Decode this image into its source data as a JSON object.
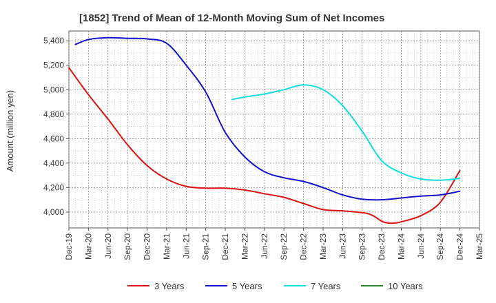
{
  "chart_data": {
    "type": "line",
    "title": "[1852]  Trend of Mean of 12-Month Moving Sum of Net Incomes",
    "xlabel": "",
    "ylabel": "Amount (million yen)",
    "ylim": [
      3870,
      5480
    ],
    "yticks": [
      4000,
      4200,
      4400,
      4600,
      4800,
      5000,
      5200,
      5400
    ],
    "ytick_labels": [
      "4,000",
      "4,200",
      "4,400",
      "4,600",
      "4,800",
      "5,000",
      "5,200",
      "5,400"
    ],
    "x_tick_labels": [
      "Dec-19",
      "Mar-20",
      "Jun-20",
      "Sep-20",
      "Dec-20",
      "Mar-21",
      "Jun-21",
      "Sep-21",
      "Dec-21",
      "Mar-22",
      "Jun-22",
      "Sep-22",
      "Dec-22",
      "Mar-23",
      "Jun-23",
      "Sep-23",
      "Dec-23",
      "Mar-24",
      "Jun-24",
      "Sep-24",
      "Dec-24",
      "Mar-25"
    ],
    "grid": true,
    "legend_position": "bottom",
    "series": [
      {
        "name": "3 Years",
        "color": "#dd1111",
        "points": [
          [
            "Dec-19",
            5180
          ],
          [
            "Mar-20",
            4960
          ],
          [
            "Jun-20",
            4760
          ],
          [
            "Sep-20",
            4550
          ],
          [
            "Dec-20",
            4380
          ],
          [
            "Mar-21",
            4270
          ],
          [
            "Jun-21",
            4210
          ],
          [
            "Sep-21",
            4195
          ],
          [
            "Dec-21",
            4195
          ],
          [
            "Mar-22",
            4180
          ],
          [
            "Jun-22",
            4150
          ],
          [
            "Sep-22",
            4120
          ],
          [
            "Dec-22",
            4070
          ],
          [
            "Mar-23",
            4020
          ],
          [
            "Jun-23",
            4010
          ],
          [
            "Sep-23",
            3995
          ],
          [
            "Oct-23",
            3985
          ],
          [
            "Nov-23",
            3960
          ],
          [
            "Dec-23",
            3925
          ],
          [
            "Jan-24",
            3910
          ],
          [
            "Feb-24",
            3910
          ],
          [
            "Mar-24",
            3920
          ],
          [
            "Jun-24",
            3970
          ],
          [
            "Sep-24",
            4080
          ],
          [
            "Dec-24",
            4340
          ]
        ]
      },
      {
        "name": "5 Years",
        "color": "#1111cc",
        "points": [
          [
            "Jan-20",
            5370
          ],
          [
            "Mar-20",
            5410
          ],
          [
            "Jun-20",
            5425
          ],
          [
            "Sep-20",
            5420
          ],
          [
            "Dec-20",
            5415
          ],
          [
            "Mar-21",
            5380
          ],
          [
            "Jun-21",
            5200
          ],
          [
            "Sep-21",
            4980
          ],
          [
            "Dec-21",
            4650
          ],
          [
            "Mar-22",
            4450
          ],
          [
            "Jun-22",
            4330
          ],
          [
            "Sep-22",
            4280
          ],
          [
            "Dec-22",
            4250
          ],
          [
            "Mar-23",
            4200
          ],
          [
            "Jun-23",
            4140
          ],
          [
            "Sep-23",
            4105
          ],
          [
            "Dec-23",
            4100
          ],
          [
            "Mar-24",
            4115
          ],
          [
            "Jun-24",
            4130
          ],
          [
            "Sep-24",
            4140
          ],
          [
            "Dec-24",
            4170
          ]
        ]
      },
      {
        "name": "7 Years",
        "color": "#11dddd",
        "points": [
          [
            "Jan-22",
            4920
          ],
          [
            "Mar-22",
            4940
          ],
          [
            "Jun-22",
            4965
          ],
          [
            "Sep-22",
            5000
          ],
          [
            "Dec-22",
            5040
          ],
          [
            "Mar-23",
            5000
          ],
          [
            "Jun-23",
            4870
          ],
          [
            "Sep-23",
            4660
          ],
          [
            "Dec-23",
            4420
          ],
          [
            "Mar-24",
            4320
          ],
          [
            "Jun-24",
            4270
          ],
          [
            "Sep-24",
            4260
          ],
          [
            "Dec-24",
            4275
          ]
        ]
      },
      {
        "name": "10 Years",
        "color": "#228822",
        "points": []
      }
    ]
  }
}
